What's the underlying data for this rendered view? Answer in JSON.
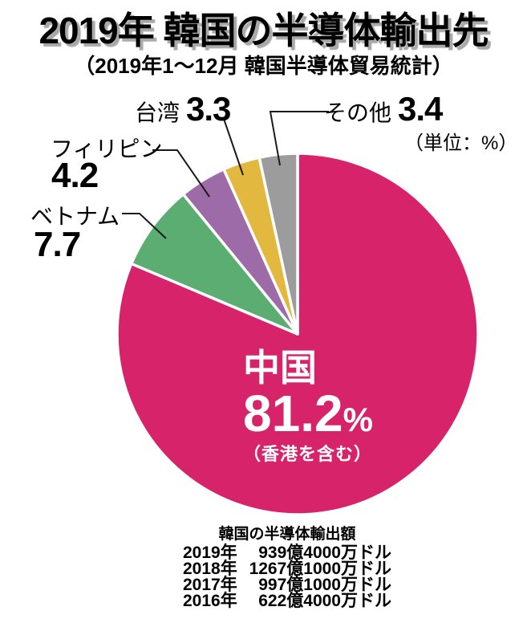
{
  "header": {
    "title": "2019年 韓国の半導体輸出先",
    "subtitle": "（2019年1～12月 韓国半導体貿易統計）"
  },
  "unit_note": "（単位：%）",
  "chart_data": {
    "type": "pie",
    "title": "2019年 韓国の半導体輸出先",
    "subtitle": "（2019年1～12月 韓国半導体貿易統計）",
    "unit": "%",
    "percent_sign": "%",
    "start_angle_deg": 0,
    "direction": "clockwise",
    "slices": [
      {
        "id": "china",
        "label": "中国",
        "value": 81.2,
        "color": "#D6236A",
        "note": "（香港を含む）"
      },
      {
        "id": "vietnam",
        "label": "ベトナム",
        "value": 7.7,
        "color": "#5CAD72"
      },
      {
        "id": "philippines",
        "label": "フィリピン",
        "value": 4.2,
        "color": "#9C6BA8"
      },
      {
        "id": "taiwan",
        "label": "台湾",
        "value": 3.3,
        "color": "#E3B83E"
      },
      {
        "id": "others",
        "label": "その他",
        "value": 3.4,
        "color": "#9C9C9C"
      }
    ]
  },
  "footer": {
    "title": "韓国の半導体輸出額",
    "rows": [
      {
        "year": "2019年",
        "amount": "939億4000万ドル"
      },
      {
        "year": "2018年",
        "amount": "1267億1000万ドル"
      },
      {
        "year": "2017年",
        "amount": "997億1000万ドル"
      },
      {
        "year": "2016年",
        "amount": "622億4000万ドル"
      }
    ]
  }
}
